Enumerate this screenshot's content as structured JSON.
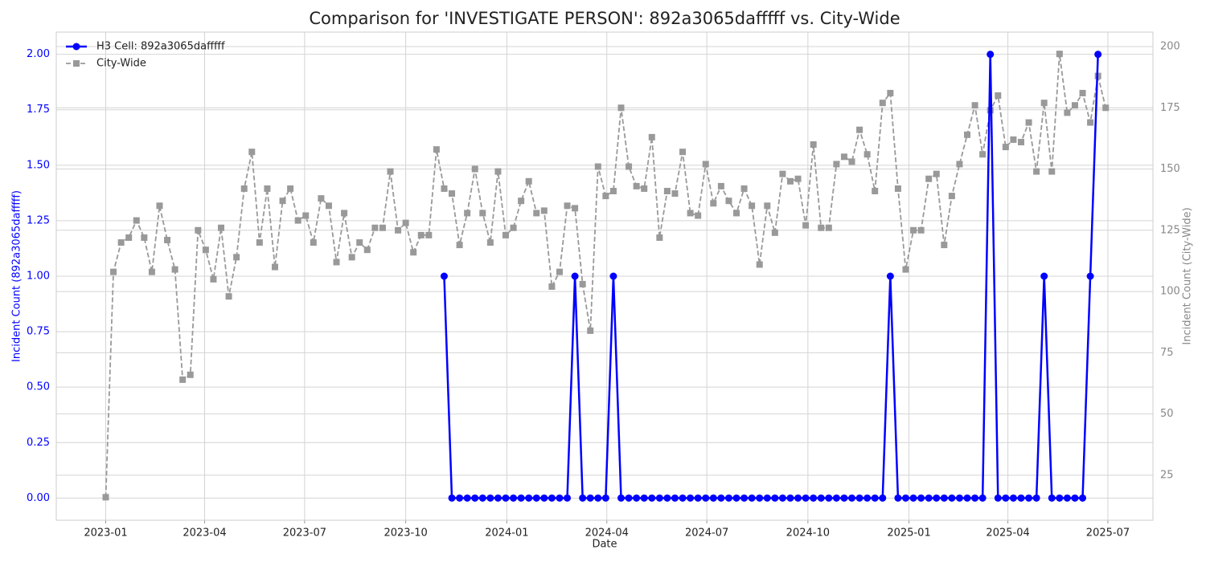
{
  "chart_data": {
    "type": "line",
    "title": "Comparison for 'INVESTIGATE PERSON': 892a3065dafffff vs. City-Wide",
    "xlabel": "Date",
    "ylabel": "Incident Count (892a3065dafffff)",
    "y2label": "Incident Count (City-Wide)",
    "x": [
      "2023-01-01",
      "2023-01-08",
      "2023-01-15",
      "2023-01-22",
      "2023-01-29",
      "2023-02-05",
      "2023-02-12",
      "2023-02-19",
      "2023-02-26",
      "2023-03-05",
      "2023-03-12",
      "2023-03-19",
      "2023-03-26",
      "2023-04-02",
      "2023-04-09",
      "2023-04-16",
      "2023-04-23",
      "2023-04-30",
      "2023-05-07",
      "2023-05-14",
      "2023-05-21",
      "2023-05-28",
      "2023-06-04",
      "2023-06-11",
      "2023-06-18",
      "2023-06-25",
      "2023-07-02",
      "2023-07-09",
      "2023-07-16",
      "2023-07-23",
      "2023-07-30",
      "2023-08-06",
      "2023-08-13",
      "2023-08-20",
      "2023-08-27",
      "2023-09-03",
      "2023-09-10",
      "2023-09-17",
      "2023-09-24",
      "2023-10-01",
      "2023-10-08",
      "2023-10-15",
      "2023-10-22",
      "2023-10-29",
      "2023-11-05",
      "2023-11-12",
      "2023-11-19",
      "2023-11-26",
      "2023-12-03",
      "2023-12-10",
      "2023-12-17",
      "2023-12-24",
      "2023-12-31",
      "2024-01-07",
      "2024-01-14",
      "2024-01-21",
      "2024-01-28",
      "2024-02-04",
      "2024-02-11",
      "2024-02-18",
      "2024-02-25",
      "2024-03-03",
      "2024-03-10",
      "2024-03-17",
      "2024-03-24",
      "2024-03-31",
      "2024-04-07",
      "2024-04-14",
      "2024-04-21",
      "2024-04-28",
      "2024-05-05",
      "2024-05-12",
      "2024-05-19",
      "2024-05-26",
      "2024-06-02",
      "2024-06-09",
      "2024-06-16",
      "2024-06-23",
      "2024-06-30",
      "2024-07-07",
      "2024-07-14",
      "2024-07-21",
      "2024-07-28",
      "2024-08-04",
      "2024-08-11",
      "2024-08-18",
      "2024-08-25",
      "2024-09-01",
      "2024-09-08",
      "2024-09-15",
      "2024-09-22",
      "2024-09-29",
      "2024-10-06",
      "2024-10-13",
      "2024-10-20",
      "2024-10-27",
      "2024-11-03",
      "2024-11-10",
      "2024-11-17",
      "2024-11-24",
      "2024-12-01",
      "2024-12-08",
      "2024-12-15",
      "2024-12-22",
      "2024-12-29",
      "2025-01-05",
      "2025-01-12",
      "2025-01-19",
      "2025-01-26",
      "2025-02-02",
      "2025-02-09",
      "2025-02-16",
      "2025-02-23",
      "2025-03-02",
      "2025-03-09",
      "2025-03-16",
      "2025-03-23",
      "2025-03-30",
      "2025-04-06",
      "2025-04-13",
      "2025-04-20",
      "2025-04-27",
      "2025-05-04",
      "2025-05-11",
      "2025-05-18",
      "2025-05-25",
      "2025-06-01",
      "2025-06-08",
      "2025-06-15",
      "2025-06-22",
      "2025-06-29"
    ],
    "series": [
      {
        "name": "H3 Cell: 892a3065dafffff",
        "color": "#0000ff",
        "axis": "y",
        "marker": "circle",
        "dashed": false,
        "values": [
          null,
          null,
          null,
          null,
          null,
          null,
          null,
          null,
          null,
          null,
          null,
          null,
          null,
          null,
          null,
          null,
          null,
          null,
          null,
          null,
          null,
          null,
          null,
          null,
          null,
          null,
          null,
          null,
          null,
          null,
          null,
          null,
          null,
          null,
          null,
          null,
          null,
          null,
          null,
          null,
          null,
          null,
          null,
          null,
          1,
          0,
          0,
          0,
          0,
          0,
          0,
          0,
          0,
          0,
          0,
          0,
          0,
          0,
          0,
          0,
          0,
          1,
          0,
          0,
          0,
          0,
          1,
          0,
          0,
          0,
          0,
          0,
          0,
          0,
          0,
          0,
          0,
          0,
          0,
          0,
          0,
          0,
          0,
          0,
          0,
          0,
          0,
          0,
          0,
          0,
          0,
          0,
          0,
          0,
          0,
          0,
          0,
          0,
          0,
          0,
          0,
          0,
          1,
          0,
          0,
          0,
          0,
          0,
          0,
          0,
          0,
          0,
          0,
          0,
          0,
          2,
          0,
          0,
          0,
          0,
          0,
          0,
          1,
          0,
          0,
          0,
          0,
          0,
          1,
          2,
          null
        ]
      },
      {
        "name": "City-Wide",
        "color": "#999999",
        "axis": "y2",
        "marker": "square",
        "dashed": true,
        "values": [
          16,
          108,
          120,
          122,
          129,
          122,
          108,
          135,
          121,
          109,
          64,
          66,
          125,
          117,
          105,
          126,
          98,
          114,
          142,
          157,
          120,
          142,
          110,
          137,
          142,
          129,
          131,
          120,
          138,
          135,
          112,
          132,
          114,
          120,
          117,
          126,
          126,
          149,
          125,
          128,
          116,
          123,
          123,
          158,
          142,
          140,
          119,
          132,
          150,
          132,
          120,
          149,
          123,
          126,
          137,
          145,
          132,
          133,
          102,
          108,
          135,
          134,
          103,
          84,
          151,
          139,
          141,
          175,
          151,
          143,
          142,
          163,
          122,
          141,
          140,
          157,
          132,
          131,
          152,
          136,
          143,
          137,
          132,
          142,
          135,
          111,
          135,
          124,
          148,
          145,
          146,
          127,
          160,
          126,
          126,
          152,
          155,
          153,
          166,
          156,
          141,
          177,
          181,
          142,
          109,
          125,
          125,
          146,
          148,
          119,
          139,
          152,
          164,
          176,
          156,
          174,
          180,
          159,
          162,
          161,
          169,
          149,
          177,
          149,
          197,
          173,
          176,
          181,
          169,
          188,
          175
        ]
      }
    ],
    "xlim": [
      "2022-11-17",
      "2025-08-11"
    ],
    "xticks": [
      "2023-01",
      "2023-04",
      "2023-07",
      "2023-10",
      "2024-01",
      "2024-04",
      "2024-07",
      "2024-10",
      "2025-01",
      "2025-04",
      "2025-07"
    ],
    "ylim": [
      -0.1,
      2.1
    ],
    "yticks": [
      {
        "value": 0,
        "label": "0.00"
      },
      {
        "value": 0.25,
        "label": "0.25"
      },
      {
        "value": 0.5,
        "label": "0.50"
      },
      {
        "value": 0.75,
        "label": "0.75"
      },
      {
        "value": 1,
        "label": "1.00"
      },
      {
        "value": 1.25,
        "label": "1.25"
      },
      {
        "value": 1.5,
        "label": "1.50"
      },
      {
        "value": 1.75,
        "label": "1.75"
      },
      {
        "value": 2,
        "label": "2.00"
      }
    ],
    "y2lim": [
      6.6,
      205.9
    ],
    "y2ticks": [
      25,
      50,
      75,
      100,
      125,
      150,
      175,
      200
    ],
    "grid": true,
    "legend": "upper left"
  }
}
